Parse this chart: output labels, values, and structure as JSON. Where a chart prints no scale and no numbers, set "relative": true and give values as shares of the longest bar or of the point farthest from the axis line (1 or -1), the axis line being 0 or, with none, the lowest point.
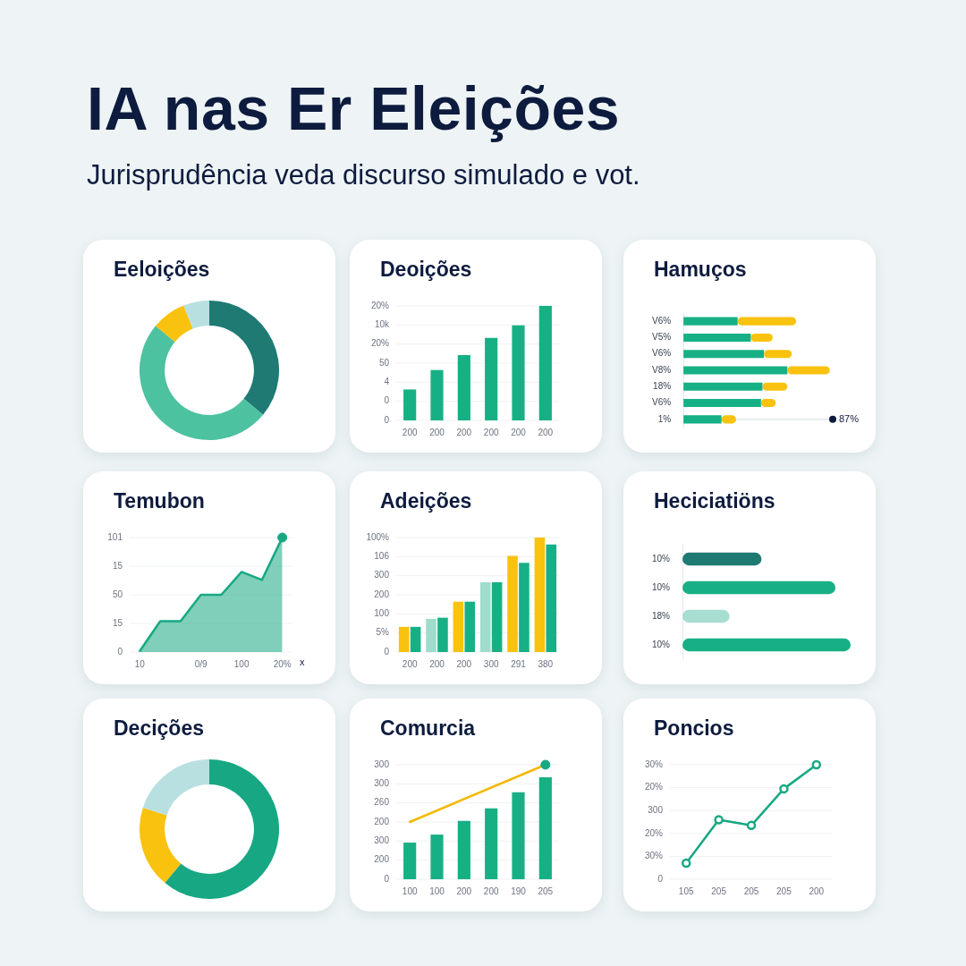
{
  "chart_data": [
    {
      "type": "other",
      "title": "IA nas Er Eleições",
      "subtitle": "Jurisprudência veda discurso simulado e vot."
    },
    {
      "type": "donut",
      "title": "Eeloições",
      "categories": [
        null,
        null,
        null,
        null
      ],
      "values": [
        36,
        50,
        8,
        6
      ],
      "colors": [
        "#1f7a74",
        "#4cc2a0",
        "#f9c20e",
        "#b9e0e0"
      ]
    },
    {
      "type": "bar",
      "title": "Deoições",
      "relative": true,
      "categories": [
        "200",
        "200",
        "200",
        "200",
        "200",
        "200"
      ],
      "values": [
        0.27,
        0.44,
        0.57,
        0.72,
        0.83,
        1
      ],
      "color": "#17b085",
      "grid": "y",
      "annotations": [
        "0",
        "0",
        "4",
        "50",
        "20%",
        "10k",
        "20%"
      ]
    },
    {
      "type": "bar",
      "title": "Hamuços",
      "orientation": "horizontal",
      "stacked": true,
      "relative": true,
      "categories": [
        "V6%",
        "V5%",
        "V6%",
        "V8%",
        "18%",
        "V6%",
        "1%"
      ],
      "series": [
        {
          "color": "#17b085",
          "values": [
            0.37,
            0.46,
            0.55,
            0.71,
            0.54,
            0.53,
            0.26
          ]
        },
        {
          "color": "#f9c20e",
          "values": [
            0.4,
            0.15,
            0.19,
            0.29,
            0.17,
            0.1,
            0.1
          ]
        }
      ],
      "annotations": [
        {
          "text": "87%",
          "x": 1.02,
          "y": "1%"
        }
      ]
    },
    {
      "type": "area",
      "title": "Temubon",
      "relative": true,
      "xlabel": "x",
      "categories": [
        "10",
        null,
        null,
        "0/9",
        null,
        "100",
        null,
        "20%"
      ],
      "series": [
        {
          "color": "#17a883",
          "values": [
            0.01,
            0.27,
            0.27,
            0.5,
            0.5,
            0.7,
            0.63,
            1
          ]
        },
        {
          "type": "scatter",
          "color": "#17a883",
          "x": [
            "20%"
          ],
          "values": [
            1
          ]
        }
      ],
      "grid": "y",
      "annotations": [
        "0",
        "15",
        "50",
        "15",
        "101"
      ]
    },
    {
      "type": "bar",
      "title": "Adeições",
      "relative": true,
      "categories": [
        "200",
        "200",
        "200",
        "300",
        "291",
        "380"
      ],
      "series": [
        {
          "color": "#f9c20e",
          "colors": [
            "#f9c20e",
            "#9fdccb",
            "#f9c20e",
            "#9fdccb",
            "#f9c20e",
            "#f9c20e"
          ],
          "values": [
            0.22,
            0.29,
            0.44,
            0.61,
            0.84,
            1
          ]
        },
        {
          "color": "#17b085",
          "values": [
            0.22,
            0.3,
            0.44,
            0.61,
            0.78,
            0.94
          ]
        }
      ],
      "grid": "y",
      "annotations": [
        "0",
        "5%",
        "100",
        "200",
        "300",
        "106",
        "100%"
      ]
    },
    {
      "type": "bar",
      "title": "Heciciatiöns",
      "orientation": "horizontal",
      "relative": true,
      "categories": [
        "10%",
        "10%",
        "18%",
        "10%"
      ],
      "values": [
        0.47,
        0.91,
        0.28,
        1.0
      ],
      "colors": [
        "#1f7a74",
        "#17b085",
        "#a8ddd2",
        "#17b085"
      ]
    },
    {
      "type": "donut",
      "title": "Decições",
      "categories": [
        null,
        null,
        null
      ],
      "values": [
        61,
        19,
        20
      ],
      "colors": [
        "#17a883",
        "#f9c20e",
        "#b9e0e0"
      ]
    },
    {
      "type": "bar",
      "title": "Comurcia",
      "relative": true,
      "categories": [
        "100",
        "100",
        "200",
        "200",
        "190",
        "205"
      ],
      "series": [
        {
          "color": "#17b085",
          "values": [
            0.32,
            0.39,
            0.51,
            0.62,
            0.76,
            0.89
          ]
        },
        {
          "type": "line",
          "color": "#f4b800",
          "values": [
            0.5,
            null,
            null,
            null,
            null,
            1
          ]
        },
        {
          "type": "scatter",
          "color": "#17a883",
          "x": [
            "205"
          ],
          "values": [
            1
          ]
        }
      ],
      "grid": "y",
      "annotations": [
        "0",
        "200",
        "300",
        "200",
        "260",
        "300",
        "300"
      ]
    },
    {
      "type": "line",
      "title": "Poncios",
      "relative": true,
      "categories": [
        "105",
        "205",
        "205",
        "205",
        "200"
      ],
      "values": [
        0.14,
        0.52,
        0.47,
        0.79,
        1
      ],
      "color": "#17a883",
      "marker": "circle",
      "grid": "y",
      "annotations": [
        "0",
        "30%",
        "20%",
        "300",
        "20%",
        "30%"
      ]
    }
  ]
}
